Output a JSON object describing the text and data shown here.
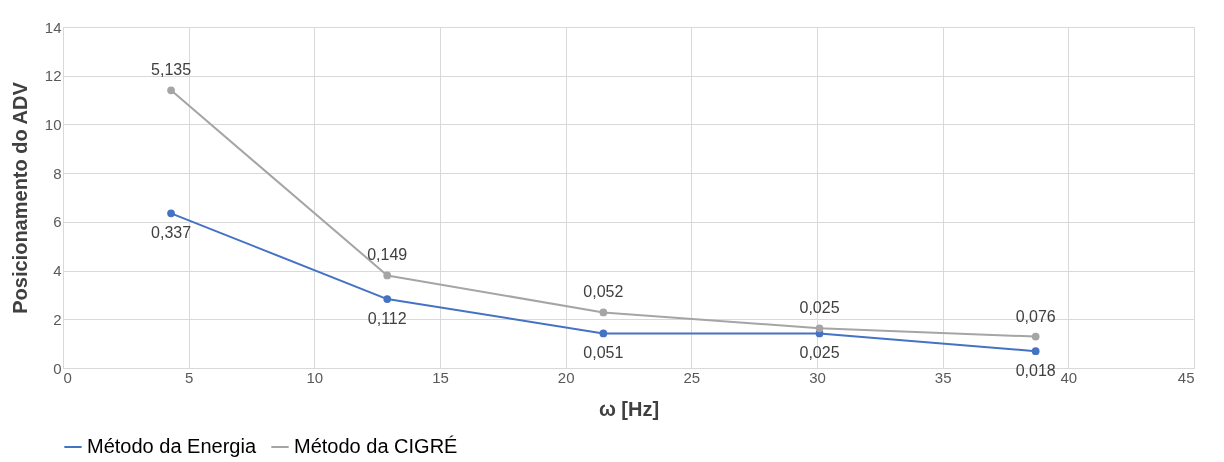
{
  "chart_data": {
    "type": "line",
    "xlabel": "ω [Hz]",
    "ylabel": "Posicionamento do ADV",
    "x": [
      4.3,
      12.9,
      21.5,
      30.1,
      38.7
    ],
    "series": [
      {
        "name": "Método da Energia",
        "color": "#4472c4",
        "values": [
          6.35,
          2.83,
          1.42,
          1.42,
          0.69
        ]
      },
      {
        "name": "Método da CIGRÉ",
        "color": "#a5a5a5",
        "values": [
          11.4,
          3.8,
          2.28,
          1.63,
          1.29
        ]
      }
    ],
    "annotations": [
      {
        "text": "0,337",
        "x": 4.3,
        "y": 6.35
      },
      {
        "text": "0,112",
        "x": 12.9,
        "y": 2.83
      },
      {
        "text": "0,051",
        "x": 21.5,
        "y": 1.42
      },
      {
        "text": "0,025",
        "x": 30.1,
        "y": 1.42
      },
      {
        "text": "0,018",
        "x": 38.7,
        "y": 0.69
      },
      {
        "text": "5,135",
        "x": 4.3,
        "y": 11.4
      },
      {
        "text": "0,149",
        "x": 12.9,
        "y": 3.8
      },
      {
        "text": "0,052",
        "x": 21.5,
        "y": 2.28
      },
      {
        "text": "0,025",
        "x": 30.1,
        "y": 1.63
      },
      {
        "text": "0,076",
        "x": 38.7,
        "y": 1.29
      }
    ],
    "xlim": [
      0,
      45
    ],
    "xticks": [
      0,
      5,
      10,
      15,
      20,
      25,
      30,
      35,
      40,
      45
    ],
    "ylim": [
      0,
      14
    ],
    "yticks": [
      0,
      2,
      4,
      6,
      8,
      10,
      12,
      14
    ],
    "grid": true,
    "legend": "bottom",
    "marker": "circle",
    "line_style": "solid"
  }
}
